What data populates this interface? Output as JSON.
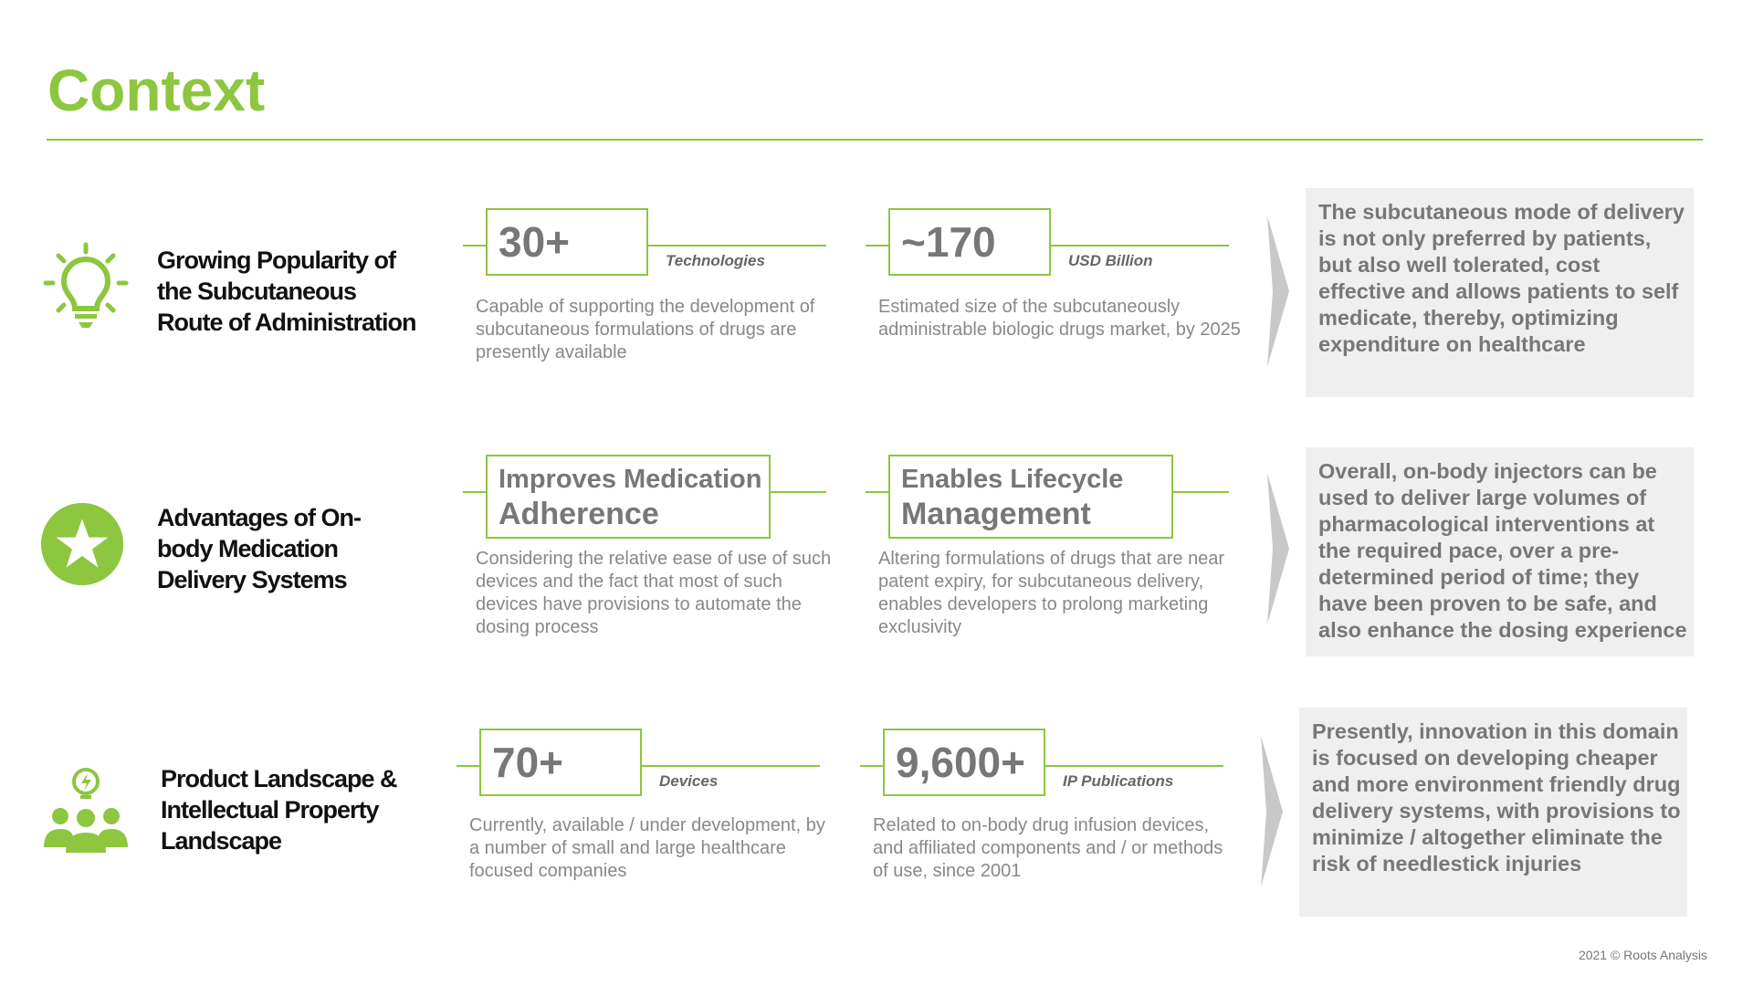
{
  "title": "Context",
  "accent_color": "#8dc63f",
  "rows": [
    {
      "icon": "lightbulb-icon",
      "heading": [
        "Growing Popularity of",
        "the Subcutaneous",
        "Route of Administration"
      ],
      "stats": [
        {
          "value": "30+",
          "unit": "Technologies",
          "desc": "Capable of supporting the development of subcutaneous formulations of drugs are presently available"
        },
        {
          "value": "~170",
          "unit": "USD Billion",
          "desc": "Estimated size  of the subcutaneously administrable biologic drugs market, by 2025"
        }
      ],
      "summary": "The subcutaneous mode of delivery is not only preferred by patients, but also well tolerated, cost effective and allows patients to self medicate, thereby, optimizing expenditure on healthcare"
    },
    {
      "icon": "star-badge-icon",
      "heading": [
        "Advantages of On-",
        "body Medication",
        "Delivery Systems"
      ],
      "stats": [
        {
          "value": "Improves Medication",
          "value2": "Adherence",
          "desc": "Considering the relative ease of use of such devices and the fact that most of such devices have provisions to automate the dosing process"
        },
        {
          "value": "Enables Lifecycle",
          "value2": "Management",
          "desc": "Altering formulations of drugs that are near patent expiry,  for subcutaneous delivery, enables developers to prolong marketing exclusivity"
        }
      ],
      "summary": "Overall, on-body injectors can be used to deliver large volumes of pharmacological interventions at the required pace, over a pre-determined period of time; they have been proven to be safe, and also enhance the dosing experience"
    },
    {
      "icon": "team-idea-icon",
      "heading": [
        "Product Landscape &",
        "Intellectual Property",
        "Landscape"
      ],
      "stats": [
        {
          "value": "70+",
          "unit": "Devices",
          "desc": "Currently, available / under development, by a number of small and large healthcare focused companies"
        },
        {
          "value": "9,600+",
          "unit": "IP Publications",
          "desc": "Related to on-body drug infusion devices, and affiliated components and / or methods of use, since 2001"
        }
      ],
      "summary": "Presently, innovation in this domain is focused on developing cheaper and more environment friendly drug delivery systems, with provisions to minimize / altogether eliminate the risk of needlestick injuries"
    }
  ],
  "footer": "2021 © Roots Analysis"
}
